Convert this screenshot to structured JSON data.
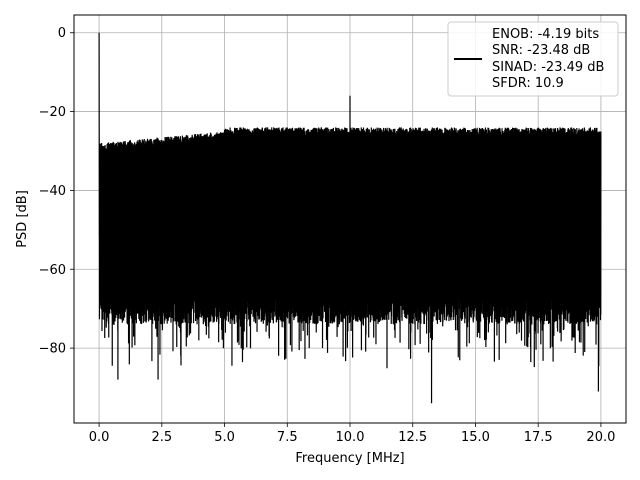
{
  "chart_data": {
    "type": "line",
    "title": "",
    "xlabel": "Frequency [MHz]",
    "ylabel": "PSD [dB]",
    "xlim": [
      -1.0,
      21.0
    ],
    "ylim": [
      -99,
      4.5
    ],
    "xticks": [
      0.0,
      2.5,
      5.0,
      7.5,
      10.0,
      12.5,
      15.0,
      17.5,
      20.0
    ],
    "xtick_labels": [
      "0.0",
      "2.5",
      "5.0",
      "7.5",
      "10.0",
      "12.5",
      "15.0",
      "17.5",
      "20.0"
    ],
    "yticks": [
      0,
      -20,
      -40,
      -60,
      -80
    ],
    "ytick_labels": [
      "0",
      "−20",
      "−40",
      "−60",
      "−80"
    ],
    "grid": true,
    "legend_position": "top-right",
    "series_color": "#000000",
    "series": [
      {
        "name": "ENOB: -4.19 bits\nSNR: -23.48 dB\nSINAD: -23.49 dB\nSFDR: 10.9",
        "description_points": {
          "dc_peak": {
            "x": 0.0,
            "y": 0
          },
          "tone_peak": {
            "x": 10.0,
            "y": -16
          },
          "noise_floor_upper": -24,
          "noise_floor_lower_typical": -70,
          "deepest_dips": [
            {
              "x": 0.75,
              "y": -88
            },
            {
              "x": 2.35,
              "y": -88
            },
            {
              "x": 13.25,
              "y": -94
            },
            {
              "x": 19.9,
              "y": -91
            }
          ]
        }
      }
    ],
    "legend_lines": [
      "ENOB: -4.19 bits",
      "SNR: -23.48 dB",
      "SINAD: -23.49 dB",
      "SFDR: 10.9"
    ]
  }
}
